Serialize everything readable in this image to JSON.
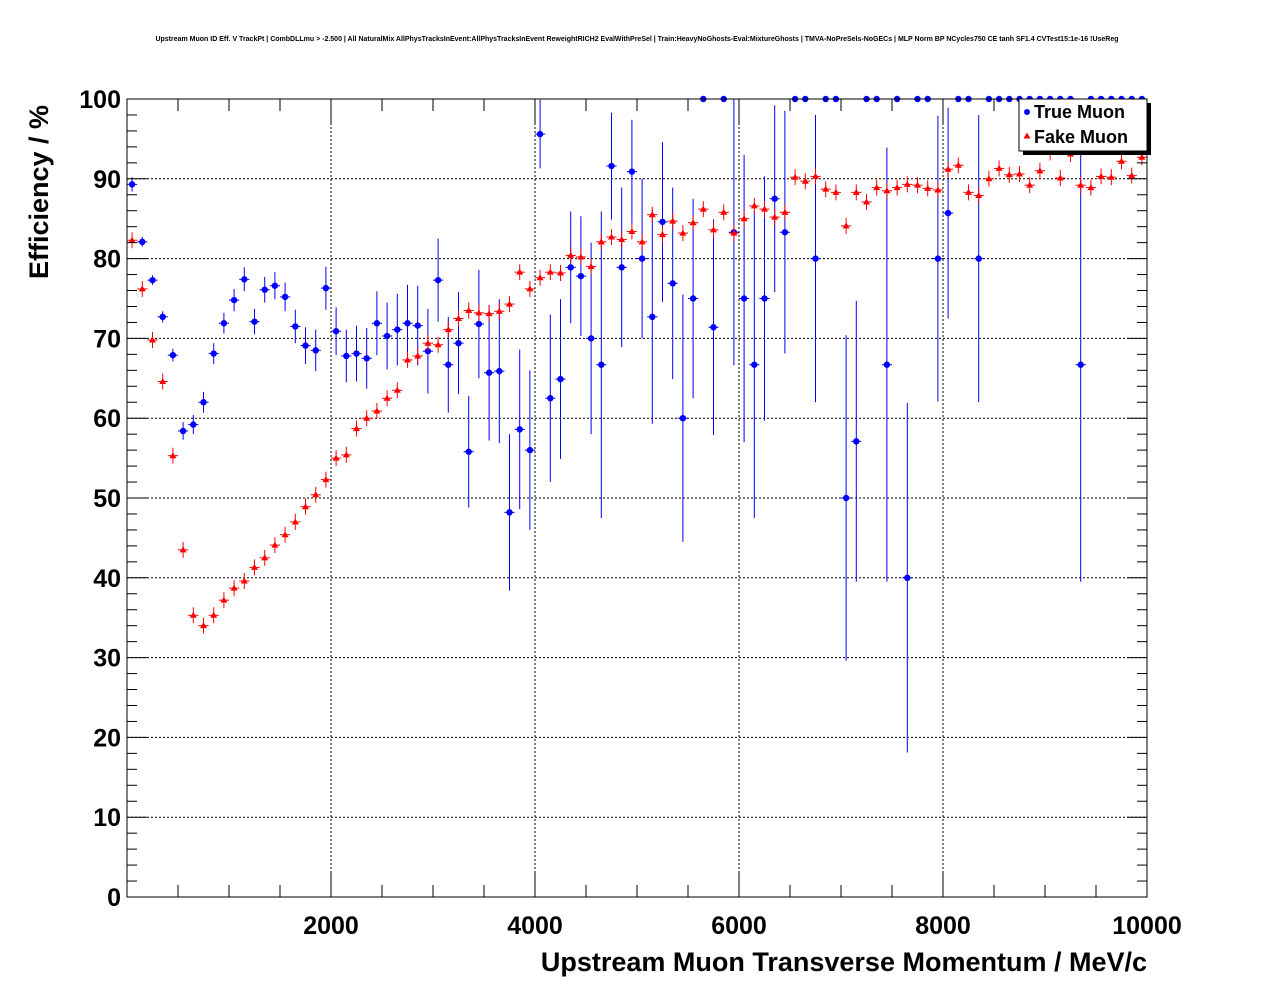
{
  "chart_data": {
    "type": "scatter",
    "title": "Upstream Muon ID Eff. V TrackPt | CombDLLmu > -2.500 | All NaturalMix AllPhysTracksInEvent:AllPhysTracksInEvent ReweightRICH2 EvalWithPreSel | Train:HeavyNoGhosts-Eval:MixtureGhosts | TMVA-NoPreSels-NoGECs | MLP Norm BP NCycles750 CE tanh SF1.4 CVTest15:1e-16 !UseReg",
    "xlabel": "Upstream Muon Transverse Momentum / MeV/c",
    "ylabel": "Efficiency / %",
    "xlim": [
      0,
      10000
    ],
    "ylim": [
      0,
      100
    ],
    "x_ticks": [
      "2000",
      "4000",
      "6000",
      "8000",
      "10000"
    ],
    "y_ticks": [
      "0",
      "10",
      "20",
      "30",
      "40",
      "50",
      "60",
      "70",
      "80",
      "90",
      "100"
    ],
    "grid": true,
    "legend_position": "top-right",
    "series": [
      {
        "name": "True Muon",
        "color": "#0000ff",
        "marker": "circle",
        "x": [
          50,
          150,
          250,
          350,
          450,
          550,
          650,
          750,
          850,
          950,
          1050,
          1150,
          1250,
          1350,
          1450,
          1550,
          1650,
          1750,
          1850,
          1950,
          2050,
          2150,
          2250,
          2350,
          2450,
          2550,
          2650,
          2750,
          2850,
          2950,
          3050,
          3150,
          3250,
          3350,
          3450,
          3550,
          3650,
          3750,
          3850,
          3950,
          4050,
          4150,
          4250,
          4350,
          4450,
          4550,
          4650,
          4750,
          4850,
          4950,
          5050,
          5150,
          5250,
          5350,
          5450,
          5550,
          5650,
          5750,
          5850,
          5950,
          6050,
          6150,
          6250,
          6350,
          6450,
          6550,
          6650,
          6750,
          6850,
          6950,
          7050,
          7150,
          7250,
          7350,
          7450,
          7550,
          7650,
          7750,
          7850,
          7950,
          8050,
          8150,
          8250,
          8350,
          8450,
          8550,
          8650,
          8750,
          8850,
          8950,
          9050,
          9150,
          9250,
          9350,
          9450,
          9550,
          9650,
          9750,
          9850,
          9950
        ],
        "y": [
          89.3,
          82.1,
          77.3,
          72.7,
          67.9,
          58.4,
          59.2,
          62,
          68.1,
          71.9,
          74.8,
          77.4,
          72.1,
          76.1,
          76.6,
          75.2,
          71.5,
          69.1,
          68.5,
          76.3,
          70.9,
          67.8,
          68.1,
          67.5,
          71.9,
          70.3,
          71.1,
          71.9,
          71.6,
          68.4,
          77.3,
          66.7,
          69.4,
          55.8,
          71.8,
          65.7,
          65.9,
          48.2,
          58.6,
          56.0,
          95.6,
          62.5,
          64.9,
          78.9,
          77.8,
          70.0,
          66.7,
          91.6,
          78.9,
          90.9,
          80.0,
          72.7,
          84.6,
          76.9,
          60.0,
          75.0,
          100,
          71.4,
          100,
          83.3,
          75.0,
          66.7,
          75.0,
          87.5,
          83.3,
          100,
          100,
          80.0,
          100,
          100,
          50.0,
          57.1,
          100,
          100,
          66.7,
          100,
          40.0,
          100,
          100,
          80.0,
          85.7,
          100,
          100,
          80.0,
          100,
          100,
          100,
          100,
          100,
          100,
          100,
          100,
          100,
          66.7,
          100,
          100,
          100,
          100,
          100,
          100
        ],
        "yerr": [
          0.9,
          0.6,
          0.6,
          0.7,
          0.8,
          1.1,
          1.2,
          1.3,
          1.3,
          1.3,
          1.4,
          1.5,
          1.6,
          1.6,
          1.7,
          1.8,
          2.1,
          2.3,
          2.6,
          2.7,
          3.0,
          3.3,
          3.5,
          3.8,
          4.0,
          4.2,
          4.5,
          4.8,
          5.0,
          5.3,
          5.2,
          6.0,
          6.4,
          7.0,
          6.8,
          8.5,
          9.0,
          9.8,
          10.0,
          10.0,
          4.3,
          10.5,
          10.0,
          7.0,
          7.5,
          12.0,
          19.2,
          6.7,
          10.0,
          6.5,
          10.0,
          13.4,
          10.0,
          12.0,
          15.5,
          12.5,
          0,
          13.5,
          0,
          16.7,
          18.0,
          19.2,
          15.3,
          11.7,
          15.2,
          0,
          0,
          18.0,
          0,
          0,
          20.4,
          17.6,
          0,
          0,
          27.2,
          0,
          21.9,
          0,
          0,
          17.9,
          13.2,
          0,
          0,
          18.0,
          0,
          0,
          0,
          0,
          0,
          0,
          0,
          0,
          0,
          27.2,
          0,
          0,
          0,
          0,
          0,
          0
        ]
      },
      {
        "name": "Fake Muon",
        "color": "#ff0000",
        "marker": "triangle",
        "x": [
          50,
          150,
          250,
          350,
          450,
          550,
          650,
          750,
          850,
          950,
          1050,
          1150,
          1250,
          1350,
          1450,
          1550,
          1650,
          1750,
          1850,
          1950,
          2050,
          2150,
          2250,
          2350,
          2450,
          2550,
          2650,
          2750,
          2850,
          2950,
          3050,
          3150,
          3250,
          3350,
          3450,
          3550,
          3650,
          3750,
          3850,
          3950,
          4050,
          4150,
          4250,
          4350,
          4450,
          4550,
          4650,
          4750,
          4850,
          4950,
          5050,
          5150,
          5250,
          5350,
          5450,
          5550,
          5650,
          5750,
          5850,
          5950,
          6050,
          6150,
          6250,
          6350,
          6450,
          6550,
          6650,
          6750,
          6850,
          6950,
          7050,
          7150,
          7250,
          7350,
          7450,
          7550,
          7650,
          7750,
          7850,
          7950,
          8050,
          8150,
          8250,
          8350,
          8450,
          8550,
          8650,
          8750,
          8850,
          8950,
          9050,
          9150,
          9250,
          9350,
          9450,
          9550,
          9650,
          9750,
          9850,
          9950
        ],
        "y": [
          82.3,
          76.2,
          69.8,
          64.6,
          55.3,
          43.5,
          35.3,
          34.0,
          35.3,
          37.2,
          38.7,
          39.6,
          41.3,
          42.5,
          44.1,
          45.4,
          47.0,
          48.9,
          50.4,
          52.3,
          55.0,
          55.4,
          58.7,
          60.0,
          60.9,
          62.5,
          63.5,
          67.3,
          67.8,
          69.4,
          69.2,
          71.1,
          72.5,
          73.5,
          73.2,
          73.1,
          73.4,
          74.3,
          78.3,
          76.2,
          77.6,
          78.3,
          78.2,
          80.4,
          80.2,
          79.0,
          82.1,
          82.7,
          82.4,
          83.4,
          82.1,
          85.5,
          83.0,
          84.7,
          83.2,
          84.5,
          86.2,
          83.6,
          85.8,
          83.2,
          85.0,
          86.6,
          86.2,
          85.2,
          85.8,
          90.2,
          89.7,
          90.3,
          88.7,
          88.3,
          84.1,
          88.3,
          87.1,
          88.9,
          88.5,
          88.9,
          89.3,
          89.2,
          88.8,
          88.6,
          91.2,
          91.7,
          88.3,
          87.9,
          90.0,
          91.3,
          90.5,
          90.6,
          89.2,
          91.0,
          93.3,
          90.1,
          93.1,
          89.2,
          88.9,
          90.3,
          90.2,
          92.2,
          90.4,
          92.7
        ]
      }
    ]
  }
}
